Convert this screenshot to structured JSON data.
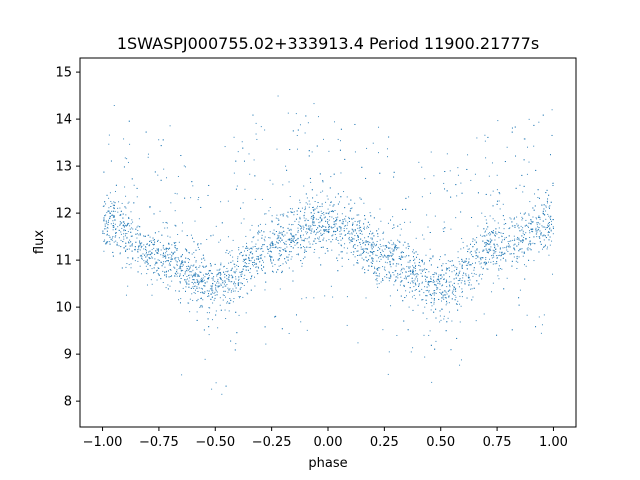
{
  "chart_data": {
    "type": "scatter",
    "title": "1SWASPJ000755.02+333913.4 Period 11900.21777s",
    "xlabel": "phase",
    "ylabel": "flux",
    "xlim": [
      -1.1,
      1.1
    ],
    "ylim": [
      7.45,
      15.3
    ],
    "x_ticks": [
      -1.0,
      -0.75,
      -0.5,
      -0.25,
      0.0,
      0.25,
      0.5,
      0.75,
      1.0
    ],
    "x_tick_labels": [
      "−1.00",
      "−0.75",
      "−0.50",
      "−0.25",
      "0.00",
      "0.25",
      "0.50",
      "0.75",
      "1.00"
    ],
    "y_ticks": [
      8,
      9,
      10,
      11,
      12,
      13,
      14,
      15
    ],
    "y_tick_labels": [
      "8",
      "9",
      "10",
      "11",
      "12",
      "13",
      "14",
      "15"
    ],
    "grid": false,
    "legend": "none",
    "point_color": "#1f77b4",
    "x_domain": [
      -1.0,
      1.0
    ],
    "n_points": 4200,
    "trend": {
      "description": "phase-folded light curve, two cycles across the plotted phase range",
      "phase": [
        -1.0,
        -0.75,
        -0.5,
        -0.25,
        0.0,
        0.25,
        0.5,
        0.75,
        1.0
      ],
      "flux": [
        11.8,
        11.1,
        10.4,
        11.3,
        11.8,
        11.1,
        10.4,
        11.3,
        11.8
      ]
    },
    "scatter_sd": 0.3
  }
}
